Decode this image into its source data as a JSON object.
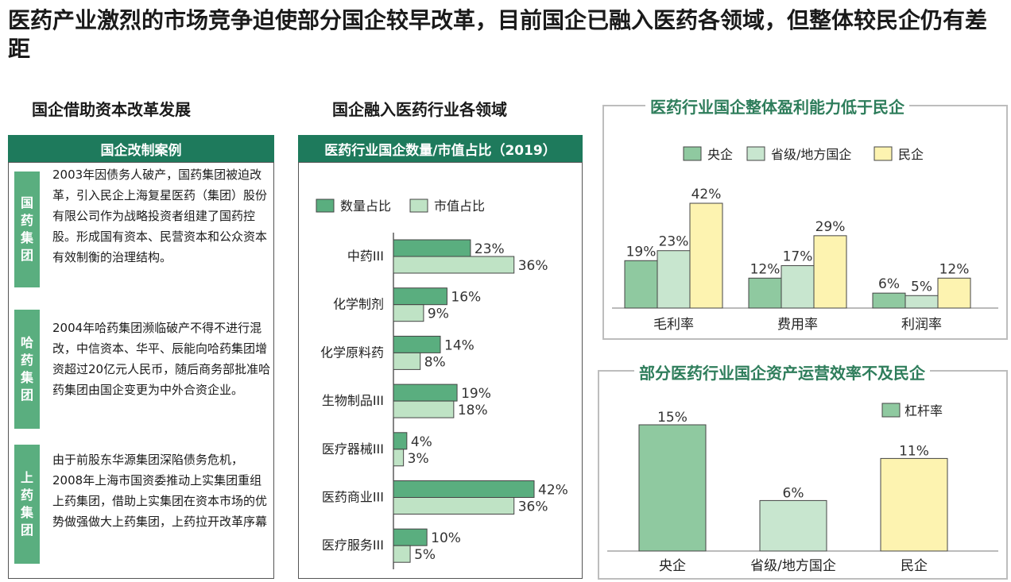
{
  "title": "医药产业激烈的市场竞争迫使部分国企较早改革，目前国企已融入医药各领域，但整体较民企仍有差距",
  "left_section": {
    "heading": "国企借助资本改革发展",
    "banner": "国企改制案例",
    "cases": [
      {
        "label": "国药集团",
        "chars": [
          "国",
          "药",
          "集",
          "团"
        ],
        "text": "2003年因债务人破产，国药集团被迫改革，引入民企上海复星医药（集团）股份有限公司作为战略投资者组建了国药控股。形成国有资本、民营资本和公众资本有效制衡的治理结构。"
      },
      {
        "label": "哈药集团",
        "chars": [
          "哈",
          "药",
          "集",
          "团"
        ],
        "text": "2004年哈药集团濒临破产不得不进行混改，中信资本、华平、辰能向哈药集团增资超过20亿元人民币，随后商务部批准哈药集团由国企变更为中外合资企业。"
      },
      {
        "label": "上药集团",
        "chars": [
          "上",
          "药",
          "集",
          "团"
        ],
        "text": "由于前股东华源集团深陷债务危机，2008年上海市国资委推动上实集团重组上药集团，借助上实集团在资本市场的优势做强做大上药集团，上药拉开改革序幕"
      }
    ]
  },
  "middle_section": {
    "heading": "国企融入医药行业各领域",
    "banner": "医药行业国企数量/市值占比（2019）"
  },
  "right_top": {
    "heading": "医药行业国企整体盈利能力低于民企"
  },
  "right_bottom": {
    "heading": "部分医药行业国企资产运营效率不及民企"
  },
  "colors": {
    "dark_green": "#5aae7f",
    "light_green": "#bfe3c5",
    "mid_green": "#8fc9a0",
    "yellow": "#fdf3b0",
    "banner": "#1e7a5c"
  },
  "chart_data": [
    {
      "type": "bar",
      "orientation": "horizontal",
      "title": "医药行业国企数量/市值占比（2019）",
      "categories": [
        "中药III",
        "化学制剂",
        "化学原料药",
        "生物制品III",
        "医疗器械III",
        "医药商业III",
        "医疗服务III"
      ],
      "series": [
        {
          "name": "数量占比",
          "values": [
            23,
            16,
            14,
            19,
            4,
            42,
            10
          ],
          "labels": [
            "23%",
            "16%",
            "14%",
            "19%",
            "4%",
            "42%",
            "10%"
          ],
          "color": "#5aae7f"
        },
        {
          "name": "市值占比",
          "values": [
            36,
            9,
            8,
            18,
            3,
            36,
            5
          ],
          "labels": [
            "36%",
            "9%",
            "8%",
            "18%",
            "3%",
            "36%",
            "5%"
          ],
          "color": "#bfe3c5"
        }
      ],
      "xlim": [
        0,
        45
      ],
      "legend": "top-left",
      "grid": false
    },
    {
      "type": "bar",
      "title": "医药行业国企整体盈利能力低于民企",
      "categories": [
        "毛利率",
        "费用率",
        "利润率"
      ],
      "series": [
        {
          "name": "央企",
          "values": [
            19,
            12,
            6
          ],
          "labels": [
            "19%",
            "12%",
            "6%"
          ],
          "color": "#8fc9a0"
        },
        {
          "name": "省级/地方国企",
          "values": [
            23,
            17,
            5
          ],
          "labels": [
            "23%",
            "17%",
            "5%"
          ],
          "color": "#c8e6cf"
        },
        {
          "name": "民企",
          "values": [
            42,
            29,
            12
          ],
          "labels": [
            "42%",
            "29%",
            "12%"
          ],
          "color": "#fdf3b0"
        }
      ],
      "ylim": [
        0,
        45
      ],
      "legend": "top-center",
      "grid": false
    },
    {
      "type": "bar",
      "title": "部分医药行业国企资产运营效率不及民企",
      "categories": [
        "央企",
        "省级/地方国企",
        "民企"
      ],
      "series": [
        {
          "name": "杠杆率",
          "values": [
            15,
            6,
            11
          ],
          "labels": [
            "15%",
            "6%",
            "11%"
          ],
          "colors": [
            "#8fc9a0",
            "#c8e6cf",
            "#fdf3b0"
          ]
        }
      ],
      "ylim": [
        0,
        16
      ],
      "legend": "top-right",
      "grid": false
    }
  ]
}
